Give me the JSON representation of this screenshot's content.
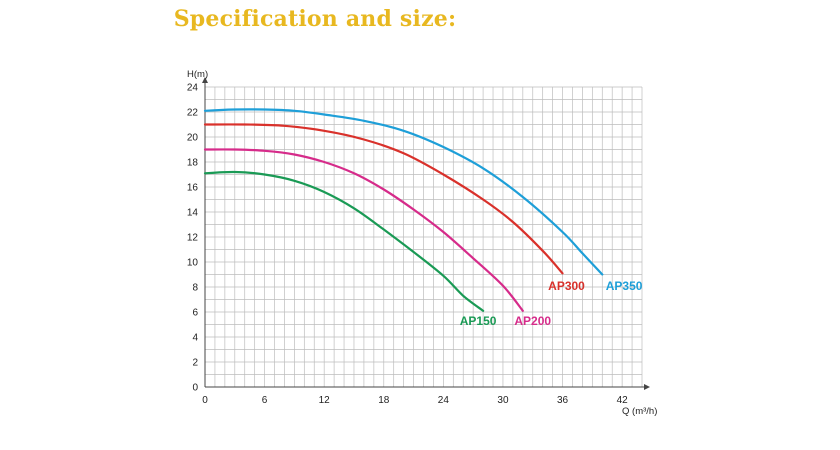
{
  "page": {
    "title": "Specification and size:"
  },
  "colors": {
    "title": "#e8b820"
  },
  "chart_data": {
    "type": "line",
    "xlabel": "Q (m³/h)",
    "ylabel": "H(m)",
    "xlim": [
      0,
      44
    ],
    "ylim": [
      0,
      24
    ],
    "x_ticks": [
      0,
      6,
      12,
      18,
      24,
      30,
      36,
      42
    ],
    "y_ticks": [
      0,
      2,
      4,
      6,
      8,
      10,
      12,
      14,
      16,
      18,
      20,
      22,
      24
    ],
    "grid": true,
    "series": [
      {
        "name": "AP150",
        "color": "#1a9a55",
        "points": [
          [
            0,
            17.1
          ],
          [
            3,
            17.2
          ],
          [
            6,
            17.0
          ],
          [
            9,
            16.5
          ],
          [
            12,
            15.6
          ],
          [
            15,
            14.3
          ],
          [
            18,
            12.6
          ],
          [
            21,
            10.8
          ],
          [
            24,
            8.9
          ],
          [
            26,
            7.3
          ],
          [
            28,
            6.1
          ]
        ]
      },
      {
        "name": "AP200",
        "color": "#d62b8a",
        "points": [
          [
            0,
            19.0
          ],
          [
            3,
            19.0
          ],
          [
            6,
            18.9
          ],
          [
            9,
            18.6
          ],
          [
            12,
            18.0
          ],
          [
            15,
            17.1
          ],
          [
            18,
            15.8
          ],
          [
            21,
            14.2
          ],
          [
            24,
            12.4
          ],
          [
            27,
            10.3
          ],
          [
            30,
            8.1
          ],
          [
            32,
            6.1
          ]
        ]
      },
      {
        "name": "AP300",
        "color": "#d9312b",
        "points": [
          [
            0,
            21.0
          ],
          [
            4,
            21.0
          ],
          [
            8,
            20.9
          ],
          [
            12,
            20.5
          ],
          [
            16,
            19.8
          ],
          [
            20,
            18.7
          ],
          [
            24,
            17.0
          ],
          [
            28,
            15.0
          ],
          [
            31,
            13.2
          ],
          [
            34,
            10.9
          ],
          [
            36,
            9.1
          ]
        ]
      },
      {
        "name": "AP350",
        "color": "#1e9fd8",
        "points": [
          [
            0,
            22.1
          ],
          [
            3,
            22.2
          ],
          [
            6,
            22.2
          ],
          [
            9,
            22.1
          ],
          [
            12,
            21.8
          ],
          [
            16,
            21.3
          ],
          [
            20,
            20.5
          ],
          [
            24,
            19.2
          ],
          [
            28,
            17.5
          ],
          [
            32,
            15.2
          ],
          [
            36,
            12.4
          ],
          [
            38,
            10.7
          ],
          [
            40,
            9.0
          ]
        ]
      }
    ],
    "labels": [
      {
        "text": "AP150",
        "series": "AP150",
        "x": 27.5,
        "y": 5.3
      },
      {
        "text": "AP200",
        "series": "AP200",
        "x": 33.0,
        "y": 5.3
      },
      {
        "text": "AP300",
        "series": "AP300",
        "x": 36.4,
        "y": 8.1
      },
      {
        "text": "AP350",
        "series": "AP350",
        "x": 42.2,
        "y": 8.1
      }
    ]
  }
}
